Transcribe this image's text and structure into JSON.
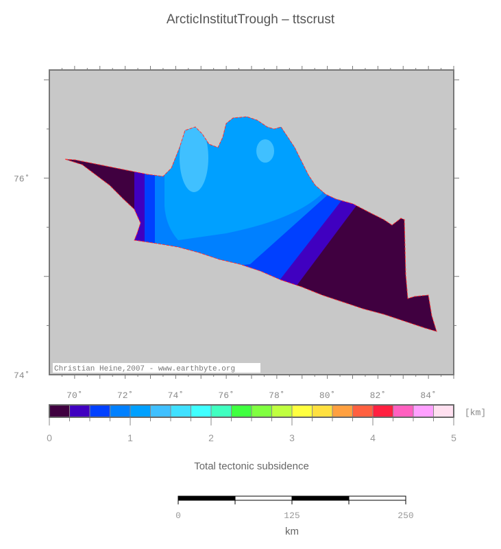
{
  "title": "ArcticInstitutTrough – ttscrust",
  "map": {
    "lon_labels": [
      "70˚",
      "72˚",
      "74˚",
      "76˚",
      "78˚",
      "80˚",
      "82˚",
      "84˚"
    ],
    "lon_values": [
      70,
      72,
      74,
      76,
      78,
      80,
      82,
      84
    ],
    "lat_labels": [
      "74˚",
      "76˚"
    ],
    "lat_values": [
      74,
      76
    ],
    "lon_range": [
      69,
      85
    ],
    "lat_range": [
      74,
      77.1
    ],
    "credit": "Christian Heine,2007 - www.earthbyte.org",
    "background_color": "#c8c8c8",
    "outline_color": "#ff3030"
  },
  "colorbar": {
    "unit": "[km]",
    "tick_labels": [
      "0",
      "1",
      "2",
      "3",
      "4",
      "5"
    ],
    "range": [
      0,
      5
    ],
    "step": 0.25,
    "colors": [
      "#400040",
      "#4000c0",
      "#0040ff",
      "#0080ff",
      "#00a0ff",
      "#40c0ff",
      "#40e0ff",
      "#40ffff",
      "#40ffc0",
      "#40ff40",
      "#80ff40",
      "#c0ff40",
      "#ffff40",
      "#ffe040",
      "#ffa040",
      "#ff6040",
      "#ff2040",
      "#ff60c0",
      "#ffa0ff",
      "#ffe0f0"
    ],
    "label": "Total tectonic subsidence"
  },
  "scalebar": {
    "labels": [
      "0",
      "125",
      "250"
    ],
    "unit": "km"
  }
}
